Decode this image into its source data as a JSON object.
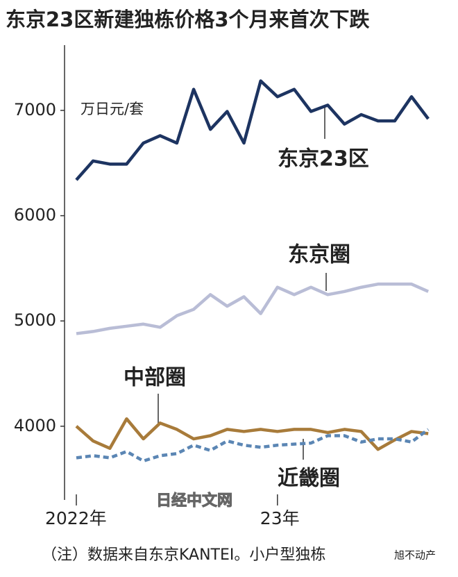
{
  "chart_data": {
    "type": "line",
    "title": "东京23区新建独栋价格3个月来首次下跌",
    "unit_label": "万日元/套",
    "note": "（注）数据来自东京KANTEI。小户型独栋",
    "watermark": "日经中文网",
    "corner_mark": "旭不动产",
    "categories": [
      "2022年",
      null,
      null,
      null,
      null,
      null,
      null,
      null,
      null,
      null,
      null,
      null,
      "23年",
      null,
      null,
      null,
      null,
      null,
      null,
      null,
      null,
      null
    ],
    "ylim": [
      3300,
      7620
    ],
    "yticks": [
      4000,
      5000,
      6000,
      7000
    ],
    "grid": false,
    "series": [
      {
        "name": "东京23区",
        "color": "#1d3461",
        "style": "solid",
        "values": [
          6340,
          6520,
          6490,
          6490,
          6690,
          6760,
          6690,
          7200,
          6820,
          6990,
          6690,
          7280,
          7130,
          7200,
          6990,
          7050,
          6870,
          6960,
          6900,
          6900,
          7130,
          6920
        ]
      },
      {
        "name": "东京圈",
        "color": "#b9bdd6",
        "style": "solid",
        "values": [
          4880,
          4900,
          4930,
          4950,
          4970,
          4940,
          5050,
          5110,
          5250,
          5140,
          5230,
          5070,
          5320,
          5250,
          5320,
          5250,
          5280,
          5320,
          5350,
          5350,
          5350,
          5280
        ]
      },
      {
        "name": "中部圈",
        "color": "#a87b3a",
        "style": "solid",
        "values": [
          4000,
          3860,
          3790,
          4070,
          3880,
          4030,
          3970,
          3880,
          3910,
          3970,
          3950,
          3970,
          3950,
          3970,
          3970,
          3940,
          3970,
          3950,
          3780,
          3870,
          3950,
          3930
        ]
      },
      {
        "name": "近畿圈",
        "color": "#5b86b4",
        "style": "dashed",
        "values": [
          3700,
          3720,
          3700,
          3760,
          3670,
          3720,
          3740,
          3820,
          3770,
          3860,
          3820,
          3800,
          3820,
          3830,
          3840,
          3910,
          3910,
          3850,
          3880,
          3880,
          3850,
          3970
        ]
      }
    ]
  }
}
